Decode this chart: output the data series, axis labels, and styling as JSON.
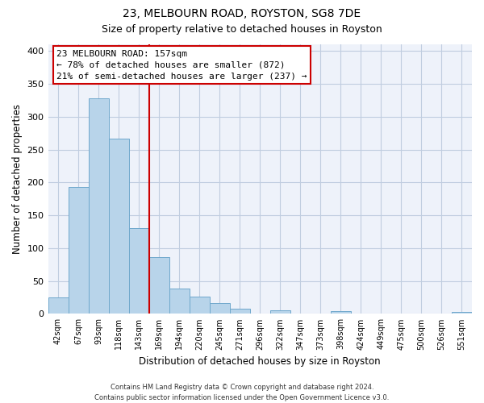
{
  "title": "23, MELBOURN ROAD, ROYSTON, SG8 7DE",
  "subtitle": "Size of property relative to detached houses in Royston",
  "xlabel": "Distribution of detached houses by size in Royston",
  "ylabel": "Number of detached properties",
  "bar_labels": [
    "42sqm",
    "67sqm",
    "93sqm",
    "118sqm",
    "143sqm",
    "169sqm",
    "194sqm",
    "220sqm",
    "245sqm",
    "271sqm",
    "296sqm",
    "322sqm",
    "347sqm",
    "373sqm",
    "398sqm",
    "424sqm",
    "449sqm",
    "475sqm",
    "500sqm",
    "526sqm",
    "551sqm"
  ],
  "bar_values": [
    25,
    193,
    328,
    266,
    130,
    86,
    39,
    26,
    17,
    8,
    0,
    5,
    0,
    0,
    4,
    0,
    0,
    0,
    0,
    0,
    3
  ],
  "bar_color": "#b8d4ea",
  "bar_edge_color": "#6fa8cc",
  "ylim": [
    0,
    410
  ],
  "yticks": [
    0,
    50,
    100,
    150,
    200,
    250,
    300,
    350,
    400
  ],
  "vline_x_idx": 4.5,
  "vline_color": "#cc0000",
  "annotation_title": "23 MELBOURN ROAD: 157sqm",
  "annotation_line1": "← 78% of detached houses are smaller (872)",
  "annotation_line2": "21% of semi-detached houses are larger (237) →",
  "footer_line1": "Contains HM Land Registry data © Crown copyright and database right 2024.",
  "footer_line2": "Contains public sector information licensed under the Open Government Licence v3.0.",
  "background_color": "#eef2fa",
  "grid_color": "#c0cde0",
  "title_fontsize": 10,
  "subtitle_fontsize": 9
}
